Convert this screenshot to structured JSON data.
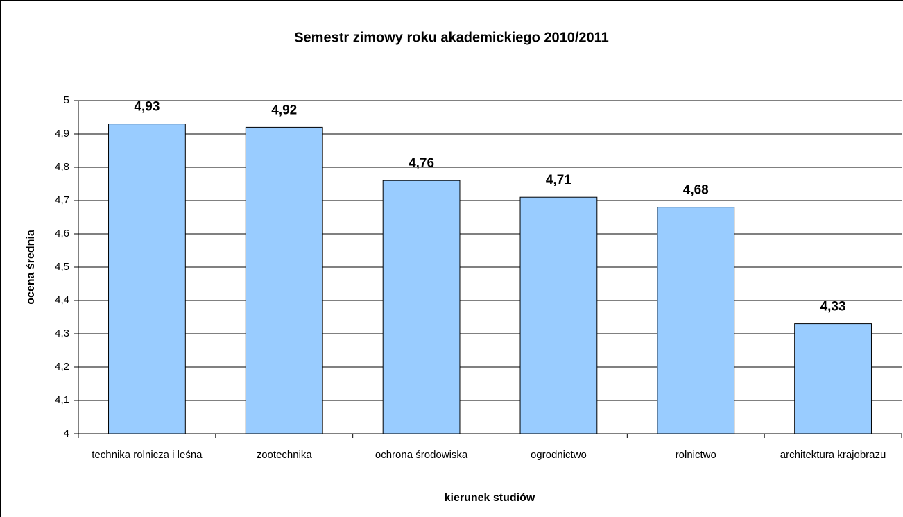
{
  "chart_data": {
    "type": "bar",
    "title": "Semestr zimowy roku akademickiego 2010/2011",
    "x_label": "kierunek studiów",
    "y_label": "ocena średnia",
    "categories": [
      "technika rolnicza i leśna",
      "zootechnika",
      "ochrona środowiska",
      "ogrodnictwo",
      "rolnictwo",
      "architektura krajobrazu"
    ],
    "values": [
      4.93,
      4.92,
      4.76,
      4.71,
      4.68,
      4.33
    ],
    "value_labels": [
      "4,93",
      "4,92",
      "4,76",
      "4,71",
      "4,68",
      "4,33"
    ],
    "color": "#99ccff",
    "ylim": [
      4,
      5
    ],
    "yticks": [
      4,
      {
        "value": 4.1,
        "label": "4,1"
      },
      {
        "value": 4.2,
        "label": "4,2"
      },
      {
        "value": 4.3,
        "label": "4,3"
      },
      {
        "value": 4.4,
        "label": "4,4"
      },
      {
        "value": 4.5,
        "label": "4,5"
      },
      {
        "value": 4.6,
        "label": "4,6"
      },
      {
        "value": 4.7,
        "label": "4,7"
      },
      {
        "value": 4.8,
        "label": "4,8"
      },
      {
        "value": 4.9,
        "label": "4,9"
      },
      5
    ],
    "grid": true
  }
}
